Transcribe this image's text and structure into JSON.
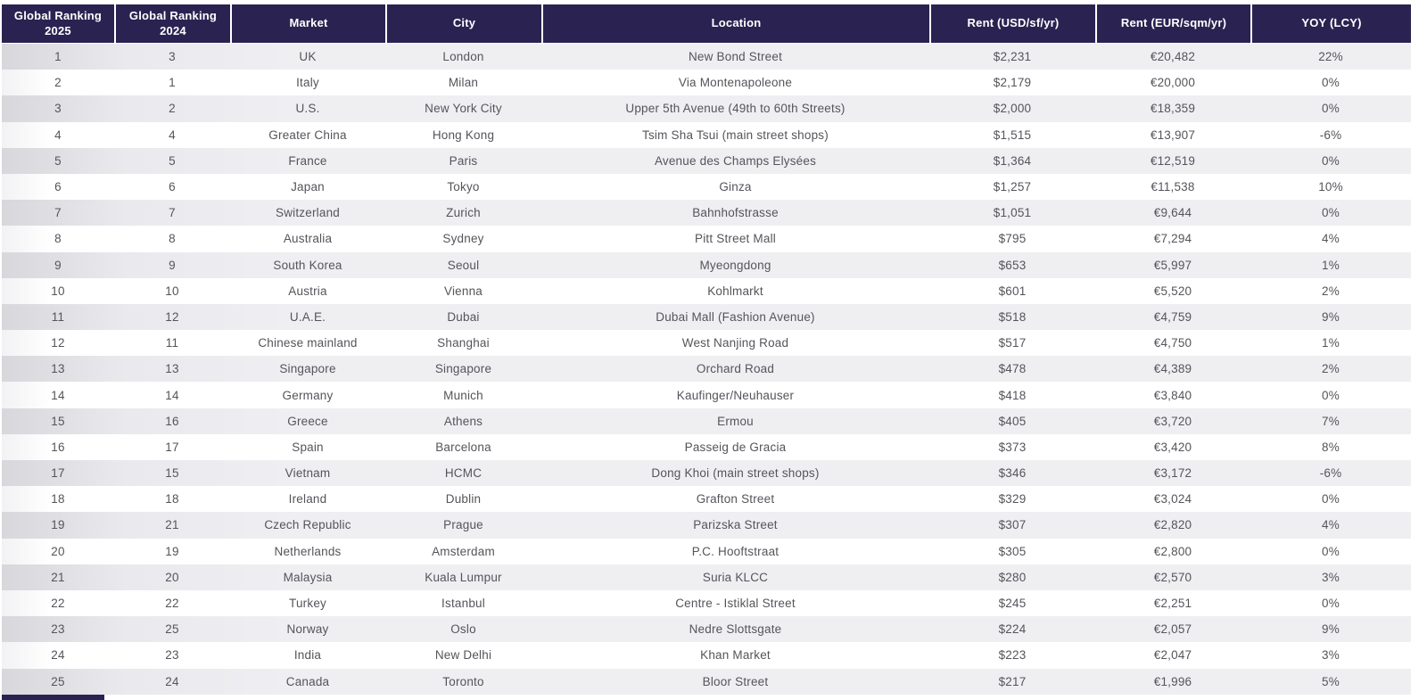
{
  "table": {
    "columns": [
      {
        "key": "rank_2025",
        "label": "Global Ranking 2025"
      },
      {
        "key": "rank_2024",
        "label": "Global Ranking 2024"
      },
      {
        "key": "market",
        "label": "Market"
      },
      {
        "key": "city",
        "label": "City"
      },
      {
        "key": "location",
        "label": "Location"
      },
      {
        "key": "rent_usd",
        "label": "Rent (USD/sf/yr)"
      },
      {
        "key": "rent_eur",
        "label": "Rent (EUR/sqm/yr)"
      },
      {
        "key": "yoy",
        "label": "YOY (LCY)"
      }
    ],
    "rows": [
      [
        "1",
        "3",
        "UK",
        "London",
        "New Bond Street",
        "$2,231",
        "€20,482",
        "22%"
      ],
      [
        "2",
        "1",
        "Italy",
        "Milan",
        "Via Montenapoleone",
        "$2,179",
        "€20,000",
        "0%"
      ],
      [
        "3",
        "2",
        "U.S.",
        "New York City",
        "Upper 5th Avenue (49th to 60th Streets)",
        "$2,000",
        "€18,359",
        "0%"
      ],
      [
        "4",
        "4",
        "Greater China",
        "Hong Kong",
        "Tsim Sha Tsui (main street shops)",
        "$1,515",
        "€13,907",
        "-6%"
      ],
      [
        "5",
        "5",
        "France",
        "Paris",
        "Avenue des Champs Elysées",
        "$1,364",
        "€12,519",
        "0%"
      ],
      [
        "6",
        "6",
        "Japan",
        "Tokyo",
        "Ginza",
        "$1,257",
        "€11,538",
        "10%"
      ],
      [
        "7",
        "7",
        "Switzerland",
        "Zurich",
        "Bahnhofstrasse",
        "$1,051",
        "€9,644",
        "0%"
      ],
      [
        "8",
        "8",
        "Australia",
        "Sydney",
        "Pitt Street Mall",
        "$795",
        "€7,294",
        "4%"
      ],
      [
        "9",
        "9",
        "South Korea",
        "Seoul",
        "Myeongdong",
        "$653",
        "€5,997",
        "1%"
      ],
      [
        "10",
        "10",
        "Austria",
        "Vienna",
        "Kohlmarkt",
        "$601",
        "€5,520",
        "2%"
      ],
      [
        "11",
        "12",
        "U.A.E.",
        "Dubai",
        "Dubai Mall (Fashion Avenue)",
        "$518",
        "€4,759",
        "9%"
      ],
      [
        "12",
        "11",
        "Chinese mainland",
        "Shanghai",
        "West Nanjing Road",
        "$517",
        "€4,750",
        "1%"
      ],
      [
        "13",
        "13",
        "Singapore",
        "Singapore",
        "Orchard Road",
        "$478",
        "€4,389",
        "2%"
      ],
      [
        "14",
        "14",
        "Germany",
        "Munich",
        "Kaufinger/Neuhauser",
        "$418",
        "€3,840",
        "0%"
      ],
      [
        "15",
        "16",
        "Greece",
        "Athens",
        "Ermou",
        "$405",
        "€3,720",
        "7%"
      ],
      [
        "16",
        "17",
        "Spain",
        "Barcelona",
        "Passeig de Gracia",
        "$373",
        "€3,420",
        "8%"
      ],
      [
        "17",
        "15",
        "Vietnam",
        "HCMC",
        "Dong Khoi (main street shops)",
        "$346",
        "€3,172",
        "-6%"
      ],
      [
        "18",
        "18",
        "Ireland",
        "Dublin",
        "Grafton Street",
        "$329",
        "€3,024",
        "0%"
      ],
      [
        "19",
        "21",
        "Czech Republic",
        "Prague",
        "Parizska Street",
        "$307",
        "€2,820",
        "4%"
      ],
      [
        "20",
        "19",
        "Netherlands",
        "Amsterdam",
        "P.C. Hooftstraat",
        "$305",
        "€2,800",
        "0%"
      ],
      [
        "21",
        "20",
        "Malaysia",
        "Kuala Lumpur",
        "Suria KLCC",
        "$280",
        "€2,570",
        "3%"
      ],
      [
        "22",
        "22",
        "Turkey",
        "Istanbul",
        "Centre - Istiklal Street",
        "$245",
        "€2,251",
        "0%"
      ],
      [
        "23",
        "25",
        "Norway",
        "Oslo",
        "Nedre Slottsgate",
        "$224",
        "€2,057",
        "9%"
      ],
      [
        "24",
        "23",
        "India",
        "New Delhi",
        "Khan Market",
        "$223",
        "€2,047",
        "3%"
      ],
      [
        "25",
        "24",
        "Canada",
        "Toronto",
        "Bloor Street",
        "$217",
        "€1,996",
        "5%"
      ]
    ]
  },
  "colors": {
    "header_bg": "#2a2351",
    "header_text": "#ffffff",
    "row_striped": "#efeff2",
    "row_striped_edge": "#d7d7dc",
    "body_text": "#54555a"
  }
}
